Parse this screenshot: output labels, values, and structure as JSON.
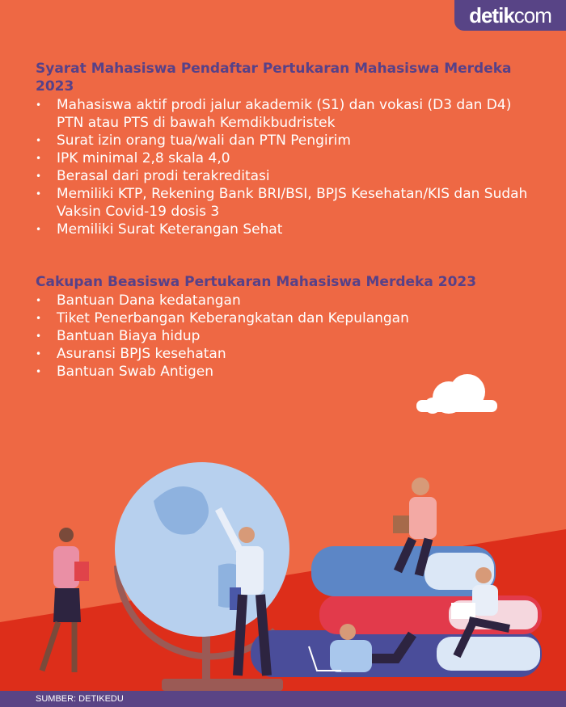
{
  "brand": {
    "logo_bold": "detik",
    "logo_light": "com"
  },
  "section1": {
    "title": "Syarat Mahasiswa Pendaftar Pertukaran Mahasiswa Merdeka 2023",
    "items": [
      "Mahasiswa aktif prodi jalur akademik (S1) dan vokasi (D3 dan D4) PTN atau PTS di bawah Kemdikbudristek",
      "Surat izin orang tua/wali dan PTN Pengirim",
      "IPK minimal 2,8 skala 4,0",
      "Berasal dari prodi terakreditasi",
      "Memiliki KTP, Rekening Bank BRI/BSI, BPJS Kesehatan/KIS dan Sudah Vaksin Covid-19 dosis 3",
      "Memiliki Surat Keterangan Sehat"
    ]
  },
  "section2": {
    "title": "Cakupan Beasiswa Pertukaran Mahasiswa Merdeka 2023",
    "items": [
      "Bantuan Dana kedatangan",
      "Tiket Penerbangan Keberangkatan dan Kepulangan",
      "Bantuan Biaya hidup",
      "Asuransi BPJS kesehatan",
      "Bantuan Swab Antigen"
    ]
  },
  "footer": {
    "source": "SUMBER: DETIKEDU"
  },
  "colors": {
    "background": "#ee6844",
    "heading": "#574188",
    "accent_red": "#dd2e1a",
    "footer": "#5a4485"
  }
}
